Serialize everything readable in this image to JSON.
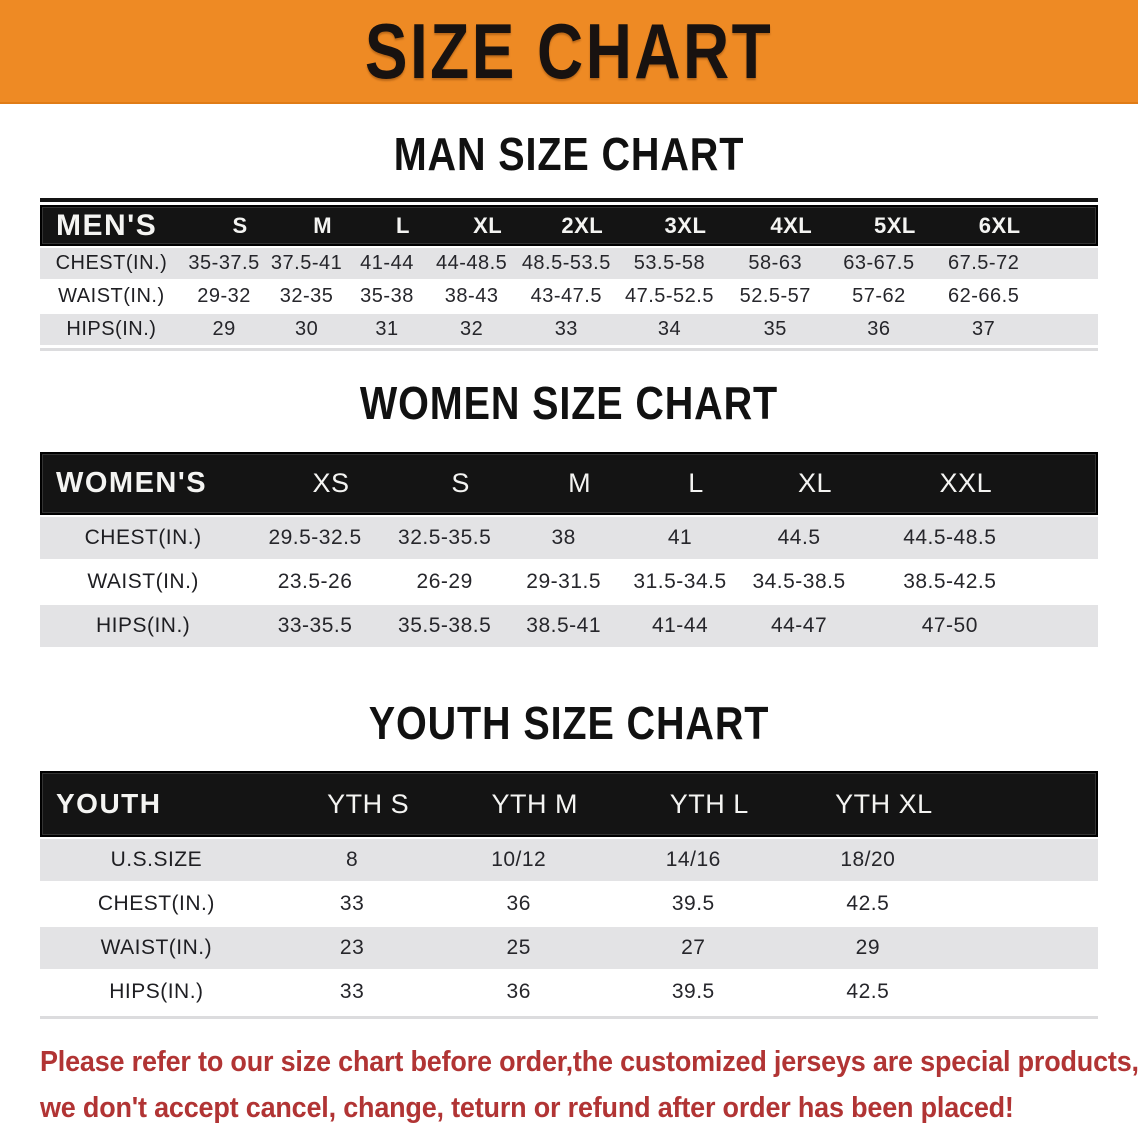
{
  "banner": {
    "title": "SIZE CHART",
    "background_color": "#ee8a24",
    "text_color": "#181210"
  },
  "colors": {
    "table_header_bg": "#141414",
    "row_stripe": "#e3e3e5",
    "disclaimer_red": "#b13434"
  },
  "sections": {
    "men": {
      "title": "MAN SIZE CHART",
      "table": {
        "group_label": "MEN'S",
        "sizes": [
          "S",
          "M",
          "L",
          "XL",
          "2XL",
          "3XL",
          "4XL",
          "5XL",
          "6XL"
        ],
        "rows": [
          {
            "label": "CHEST(IN.)",
            "values": [
              "35-37.5",
              "37.5-41",
              "41-44",
              "44-48.5",
              "48.5-53.5",
              "53.5-58",
              "58-63",
              "63-67.5",
              "67.5-72"
            ]
          },
          {
            "label": "WAIST(IN.)",
            "values": [
              "29-32",
              "32-35",
              "35-38",
              "38-43",
              "43-47.5",
              "47.5-52.5",
              "52.5-57",
              "57-62",
              "62-66.5"
            ]
          },
          {
            "label": "HIPS(IN.)",
            "values": [
              "29",
              "30",
              "31",
              "32",
              "33",
              "34",
              "35",
              "36",
              "37"
            ]
          }
        ]
      }
    },
    "women": {
      "title": "WOMEN SIZE CHART",
      "table": {
        "group_label": "WOMEN'S",
        "sizes": [
          "XS",
          "S",
          "M",
          "L",
          "XL",
          "XXL"
        ],
        "rows": [
          {
            "label": "CHEST(IN.)",
            "values": [
              "29.5-32.5",
              "32.5-35.5",
              "38",
              "41",
              "44.5",
              "44.5-48.5"
            ]
          },
          {
            "label": "WAIST(IN.)",
            "values": [
              "23.5-26",
              "26-29",
              "29-31.5",
              "31.5-34.5",
              "34.5-38.5",
              "38.5-42.5"
            ]
          },
          {
            "label": "HIPS(IN.)",
            "values": [
              "33-35.5",
              "35.5-38.5",
              "38.5-41",
              "41-44",
              "44-47",
              "47-50"
            ]
          }
        ]
      }
    },
    "youth": {
      "title": "YOUTH SIZE CHART",
      "table": {
        "group_label": "YOUTH",
        "sizes": [
          "YTH S",
          "YTH M",
          "YTH L",
          "YTH XL"
        ],
        "rows": [
          {
            "label": "U.S.SIZE",
            "values": [
              "8",
              "10/12",
              "14/16",
              "18/20"
            ]
          },
          {
            "label": "CHEST(IN.)",
            "values": [
              "33",
              "36",
              "39.5",
              "42.5"
            ]
          },
          {
            "label": "WAIST(IN.)",
            "values": [
              "23",
              "25",
              "27",
              "29"
            ]
          },
          {
            "label": "HIPS(IN.)",
            "values": [
              "33",
              "36",
              "39.5",
              "42.5"
            ]
          }
        ]
      }
    }
  },
  "disclaimer": {
    "line1": "Please refer to our size chart before order,the customized jerseys are special products,",
    "line2": "we don't accept cancel, change, teturn or refund after order has been placed!"
  }
}
